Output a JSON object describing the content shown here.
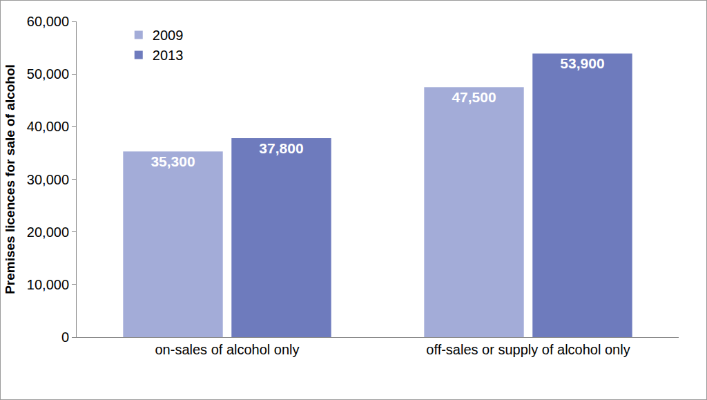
{
  "chart_data": {
    "type": "bar",
    "y_label": "Premises licences for sale of alcohol",
    "categories": [
      "on-sales of alcohol only",
      "off-sales or supply of alcohol only"
    ],
    "series": [
      {
        "name": "2009",
        "color": "#a3acd8",
        "values": [
          35300,
          47500
        ],
        "value_labels": [
          "35,300",
          "47,500"
        ]
      },
      {
        "name": "2013",
        "color": "#6e7bbd",
        "values": [
          37800,
          53900
        ],
        "value_labels": [
          "37,800",
          "53,900"
        ]
      }
    ],
    "ylim": [
      0,
      60000
    ],
    "yticks": [
      0,
      {
        "value": 10000,
        "label": "10,000"
      },
      {
        "value": 20000,
        "label": "20,000"
      },
      {
        "value": 30000,
        "label": "30,000"
      },
      {
        "value": 40000,
        "label": "40,000"
      },
      {
        "value": 50000,
        "label": "50,000"
      },
      {
        "value": 60000,
        "label": "60,000"
      }
    ],
    "grid": false,
    "legend": "top-left",
    "data_labels": true
  }
}
